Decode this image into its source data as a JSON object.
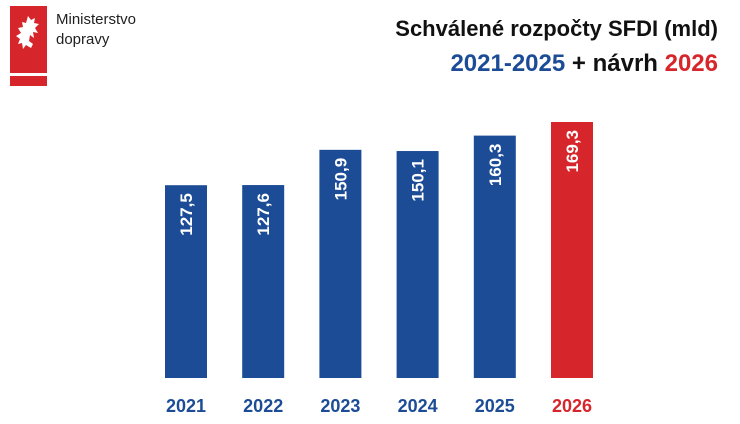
{
  "logo": {
    "line1": "Ministerstvo",
    "line2": "dopravy",
    "color": "#d7262b"
  },
  "header": {
    "title": "Schválené rozpočty SFDI (mld)",
    "subtitle_part1": "2021-2025",
    "subtitle_part2": " + návrh ",
    "subtitle_part3": "2026"
  },
  "colors": {
    "blue": "#1c4c96",
    "red": "#d7262b",
    "dark": "#1a1a1a"
  },
  "chart_data": {
    "type": "bar",
    "title": "Schválené rozpočty SFDI (mld)",
    "categories": [
      "2021",
      "2022",
      "2023",
      "2024",
      "2025",
      "2026"
    ],
    "values": [
      127.5,
      127.6,
      150.9,
      150.1,
      160.3,
      169.3
    ],
    "value_labels": [
      "127,5",
      "127,6",
      "150,9",
      "150,1",
      "160,3",
      "169,3"
    ],
    "highlight_index": 5,
    "xlabel": "",
    "ylabel": "",
    "ylim": [
      0,
      169.3
    ],
    "grid": false,
    "legend": "none"
  }
}
